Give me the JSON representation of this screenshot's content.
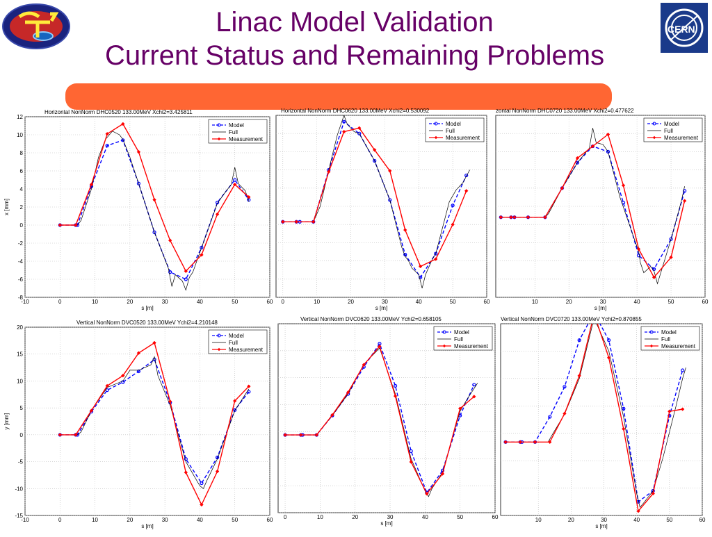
{
  "slide": {
    "title_line1": "Linac Model Validation",
    "title_line2": "Current Status and Remaining Problems",
    "bar_color": "#ff6633",
    "title_color": "#660066"
  },
  "logos": {
    "left": "ctf3-logo",
    "right_text": "CERN"
  },
  "colors": {
    "model": "#0000ff",
    "full": "#000000",
    "measurement": "#ff0000"
  },
  "chart_data": [
    {
      "type": "line",
      "title": "Horizontal NonNorm  DHC0520 133.00MeV Xchi2=3.425811",
      "xlabel": "s [m]",
      "ylabel": "x [mm]",
      "xlim": [
        -10,
        60
      ],
      "ylim": [
        -8,
        12
      ],
      "xticks": [
        -10,
        0,
        10,
        20,
        30,
        40,
        50,
        60
      ],
      "yticks": [
        -8,
        -6,
        -4,
        -2,
        0,
        2,
        4,
        6,
        8,
        10,
        12
      ],
      "grid": true,
      "legend": [
        "Model",
        "Full",
        "Measurement"
      ],
      "legend_position": "top-right",
      "series": [
        {
          "name": "Model",
          "style": "dashed-circle",
          "x": [
            0,
            4.5,
            5,
            9,
            13.5,
            18,
            22.5,
            27,
            31.5,
            36,
            40.5,
            45,
            50,
            54
          ],
          "y": [
            0,
            0,
            0,
            4.3,
            8.8,
            9.4,
            4.6,
            -0.8,
            -5.2,
            -6,
            -2.5,
            2.5,
            5,
            2.8
          ]
        },
        {
          "name": "Full",
          "style": "solid",
          "x": [
            0,
            5,
            6,
            9,
            11,
            13,
            15,
            17,
            18,
            20,
            22.5,
            27,
            31,
            32,
            33,
            35,
            36,
            37,
            38,
            40.5,
            45,
            47,
            49,
            50,
            51,
            53,
            54
          ],
          "y": [
            0,
            0,
            0.5,
            4,
            7.5,
            9.5,
            10.4,
            10,
            9.5,
            7.5,
            4.6,
            -0.8,
            -4.8,
            -6.8,
            -5.5,
            -6.2,
            -7.2,
            -5.8,
            -5.2,
            -2.5,
            2.4,
            3.5,
            4.5,
            6.4,
            4.6,
            3.8,
            2.6
          ]
        },
        {
          "name": "Measurement",
          "style": "solid-diamond",
          "x": [
            0,
            4.5,
            9,
            13.5,
            18,
            22.5,
            27,
            31.5,
            36,
            40.5,
            45,
            50,
            54
          ],
          "y": [
            0,
            0,
            4.5,
            10.1,
            11.2,
            8.1,
            2.8,
            -1.7,
            -5.1,
            -3.3,
            1.2,
            4.5,
            3.1
          ]
        }
      ]
    },
    {
      "type": "line",
      "title": "Horizontal NonNorm  DHC0620 133.00MeV Xchi2=0.530092",
      "xlabel": "s [m]",
      "ylabel": "",
      "xlim": [
        -2,
        60
      ],
      "ylim": [
        -8,
        12
      ],
      "xticks": [
        0,
        10,
        20,
        30,
        40,
        50,
        60
      ],
      "grid": true,
      "legend": [
        "Model",
        "Full",
        "Measurement"
      ],
      "legend_position": "top-right",
      "series": [
        {
          "name": "Model",
          "style": "dashed-circle",
          "x": [
            0,
            4,
            5,
            9,
            13.5,
            18,
            22.5,
            27,
            31.5,
            36,
            40.5,
            45,
            50,
            54
          ],
          "y": [
            0.3,
            0.3,
            0.3,
            0.3,
            6,
            11.3,
            10,
            7,
            2.7,
            -3.3,
            -5.8,
            -3.2,
            2.1,
            5.4
          ]
        },
        {
          "name": "Full",
          "style": "solid",
          "x": [
            0,
            9,
            11,
            13.5,
            16,
            18,
            19,
            21,
            22.5,
            27,
            31.5,
            35,
            36,
            37,
            38,
            40,
            41,
            42,
            44,
            45,
            49,
            51,
            53,
            55
          ],
          "y": [
            0.3,
            0.3,
            2,
            6,
            9.8,
            12,
            11,
            10.2,
            10,
            7,
            2.7,
            -2.5,
            -3.5,
            -4,
            -4.8,
            -5.5,
            -7,
            -5.5,
            -3.8,
            -3.2,
            2.5,
            3.8,
            4.6,
            6
          ]
        },
        {
          "name": "Measurement",
          "style": "solid-diamond",
          "x": [
            0,
            4,
            9,
            13.5,
            18,
            22.5,
            27,
            31.5,
            36,
            40.5,
            45,
            50,
            54
          ],
          "y": [
            0.3,
            0.3,
            0.3,
            5.8,
            10.2,
            10.6,
            8.2,
            5.9,
            -0.6,
            -4.6,
            -3.8,
            0,
            3.7
          ]
        }
      ]
    },
    {
      "type": "line",
      "title": "zontal NonNorm  DHC0720 133.00MeV Xchi2=0.477622",
      "xlabel": "s [m]",
      "ylabel": "",
      "xlim": [
        -1.5,
        60
      ],
      "ylim": [
        -8,
        12
      ],
      "xticks": [
        10,
        20,
        30,
        40,
        50,
        60
      ],
      "grid": true,
      "legend": [
        "Model",
        "Full",
        "Measurement"
      ],
      "legend_position": "top-right",
      "series": [
        {
          "name": "Model",
          "style": "dashed-circle",
          "x": [
            0,
            3,
            4,
            8,
            13,
            18,
            22.5,
            27,
            31.5,
            36,
            40.5,
            45,
            50,
            54
          ],
          "y": [
            0.8,
            0.8,
            0.8,
            0.8,
            0.8,
            4,
            6.8,
            8.6,
            8,
            2.4,
            -3.4,
            -4.9,
            -1.6,
            3.7
          ]
        },
        {
          "name": "Full",
          "style": "solid",
          "x": [
            0,
            13,
            14,
            18,
            22.5,
            26,
            27,
            28,
            30,
            31.5,
            35,
            40.5,
            41,
            42,
            44,
            45,
            46,
            50,
            53,
            54
          ],
          "y": [
            0.8,
            0.8,
            1.2,
            4,
            6.8,
            8.4,
            10.6,
            9,
            8.8,
            8,
            3,
            -3,
            -4.2,
            -5.3,
            -4.6,
            -5.1,
            -6.5,
            -1.6,
            2.5,
            4.2
          ]
        },
        {
          "name": "Measurement",
          "style": "solid-diamond",
          "x": [
            0,
            3,
            4,
            8,
            13,
            18,
            22.5,
            27,
            31.5,
            36,
            40.5,
            45,
            50,
            54
          ],
          "y": [
            0.8,
            0.8,
            0.8,
            0.8,
            0.8,
            4,
            7.3,
            8.6,
            9.9,
            4.3,
            -2.7,
            -5.8,
            -3.6,
            2.6
          ]
        }
      ]
    },
    {
      "type": "line",
      "title": "Vertical NonNorm  DVC0520 133.00MeV Ychi2=4.210148",
      "xlabel": "s [m]",
      "ylabel": "y [mm]",
      "xlim": [
        -10,
        60
      ],
      "ylim": [
        -15,
        20
      ],
      "xticks": [
        -10,
        0,
        10,
        20,
        30,
        40,
        50,
        60
      ],
      "yticks": [
        -15,
        -10,
        -5,
        0,
        5,
        10,
        15,
        20
      ],
      "grid": true,
      "legend": [
        "Model",
        "Full",
        "Measurement"
      ],
      "legend_position": "top-right",
      "series": [
        {
          "name": "Model",
          "style": "dashed-circle",
          "x": [
            0,
            4.5,
            5,
            9,
            13.5,
            18,
            22.5,
            27,
            31.5,
            36,
            40.5,
            45,
            50,
            54
          ],
          "y": [
            0,
            0,
            0,
            4.3,
            8.3,
            9.8,
            11.8,
            14,
            6,
            -4.5,
            -9,
            -4.2,
            4.6,
            8
          ]
        },
        {
          "name": "Full",
          "style": "solid",
          "x": [
            0,
            5,
            6,
            9,
            13.5,
            18,
            20,
            22.5,
            26,
            27,
            28,
            31.5,
            36,
            40,
            41,
            42,
            45,
            50,
            54
          ],
          "y": [
            0,
            0,
            0.5,
            4.5,
            8.8,
            10,
            12,
            12,
            13,
            14.5,
            11,
            5.5,
            -5,
            -9.5,
            -10,
            -8.5,
            -4.5,
            4.5,
            8.5
          ]
        },
        {
          "name": "Measurement",
          "style": "solid-diamond",
          "x": [
            0,
            4.5,
            9,
            13.5,
            18,
            22.5,
            27,
            31.5,
            36,
            40.5,
            45,
            50,
            54
          ],
          "y": [
            0,
            0,
            4.5,
            9.1,
            11,
            15.2,
            17.1,
            6.2,
            -7,
            -13,
            -6.8,
            6.3,
            9
          ]
        }
      ]
    },
    {
      "type": "line",
      "title": "Vertical NonNorm  DVC0620 133.00MeV Ychi2=0.658105",
      "xlabel": "s [m]",
      "ylabel": "",
      "xlim": [
        -2,
        60
      ],
      "ylim": [
        -15,
        20
      ],
      "xticks": [
        0,
        10,
        20,
        30,
        40,
        50,
        60
      ],
      "grid": true,
      "legend": [
        "Model",
        "Full",
        "Measurement"
      ],
      "legend_position": "top-right",
      "series": [
        {
          "name": "Model",
          "style": "dashed-circle",
          "x": [
            0,
            4.5,
            5,
            9,
            13.5,
            18,
            22.5,
            27,
            31.5,
            36,
            40.5,
            45,
            50,
            54
          ],
          "y": [
            -0.6,
            -0.6,
            -0.6,
            -0.6,
            3,
            7,
            12,
            16.3,
            8.5,
            -3.6,
            -11.3,
            -7.2,
            3,
            8.7
          ]
        },
        {
          "name": "Full",
          "style": "solid",
          "x": [
            0,
            9,
            11,
            13.5,
            18,
            22.5,
            27,
            31.5,
            36,
            40,
            41,
            42,
            45,
            50,
            52,
            55
          ],
          "y": [
            -0.6,
            -0.6,
            1,
            3,
            7,
            12.5,
            15.5,
            7,
            -5,
            -11,
            -12,
            -10.5,
            -7.5,
            3.8,
            6,
            9
          ]
        },
        {
          "name": "Measurement",
          "style": "solid-diamond",
          "x": [
            0,
            4.5,
            9,
            13.5,
            18,
            22.5,
            27,
            31.5,
            36,
            40.5,
            45,
            50,
            54
          ],
          "y": [
            -0.6,
            -0.6,
            -0.6,
            3.1,
            7.3,
            12.4,
            15.8,
            6.6,
            -5.6,
            -11.5,
            -7.8,
            4.3,
            6.5
          ]
        }
      ]
    },
    {
      "type": "line",
      "title": "Vertical NonNorm  DVC0720 133.00MeV Ychi2=0.870855",
      "xlabel": "s [m]",
      "ylabel": "",
      "xlim": [
        -1.5,
        60
      ],
      "ylim": [
        -15,
        20
      ],
      "xticks": [
        10,
        20,
        30,
        40,
        50,
        60
      ],
      "grid": true,
      "legend": [
        "Model",
        "Full",
        "Measurement"
      ],
      "legend_position": "top-right",
      "series": [
        {
          "name": "Model",
          "style": "dashed-circle",
          "x": [
            0,
            4.5,
            5,
            9,
            13.5,
            18,
            22.5,
            27,
            31.5,
            36,
            40.5,
            45,
            50,
            54
          ],
          "y": [
            -1.6,
            -1.6,
            -1.6,
            -1.6,
            3,
            8.5,
            17,
            22,
            17,
            4.5,
            -12.5,
            -10.5,
            3.2,
            11.5
          ]
        },
        {
          "name": "Full",
          "style": "solid",
          "x": [
            0,
            13,
            14,
            18,
            22.5,
            27,
            31.5,
            36,
            40,
            41,
            42,
            45,
            48,
            52,
            54,
            55
          ],
          "y": [
            -1.6,
            -1.6,
            -0.5,
            3.5,
            10,
            21,
            15,
            3,
            -11,
            -13.5,
            -12.8,
            -10.5,
            -4.5,
            5,
            10,
            12
          ]
        },
        {
          "name": "Measurement",
          "style": "solid-diamond",
          "x": [
            0,
            4.5,
            9,
            13.5,
            18,
            22.5,
            27,
            31.5,
            36,
            40.5,
            45,
            50,
            54
          ],
          "y": [
            -1.6,
            -1.6,
            -1.6,
            -1.6,
            3.6,
            10.5,
            21.8,
            13.8,
            0.8,
            -14.2,
            -11,
            4,
            4.4
          ]
        }
      ]
    }
  ]
}
